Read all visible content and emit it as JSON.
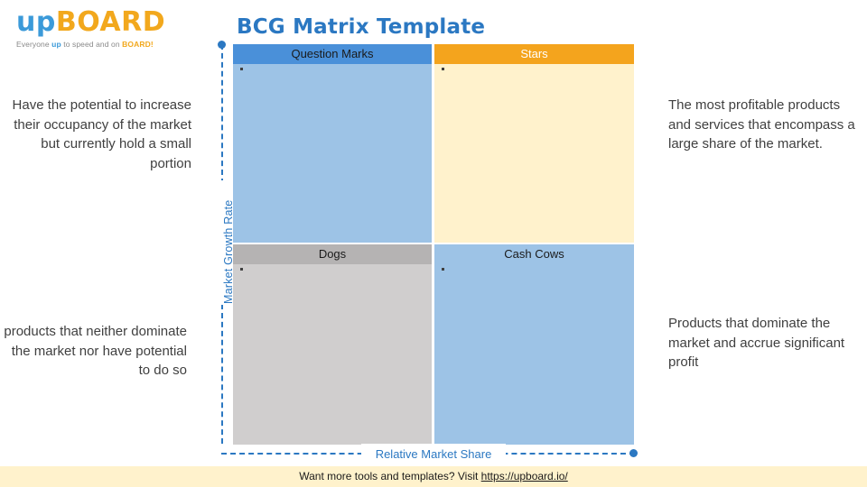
{
  "logo": {
    "brand_up": "up",
    "brand_board": "BOARD",
    "tagline_before": "Everyone ",
    "tagline_up": "up",
    "tagline_middle": " to speed and on ",
    "tagline_board": "BOARD!",
    "colors": {
      "up": "#3b9ad9",
      "board": "#f2a81d"
    }
  },
  "title": "BCG Matrix Template",
  "axes": {
    "vertical_label": "Market Growth Rate",
    "horizontal_label": "Relative Market Share",
    "color": "#2b78c2"
  },
  "quadrants": {
    "question_marks": {
      "label": "Question Marks",
      "bullet": "▪",
      "color": "#9dc3e6",
      "header_color": "#4a90d9"
    },
    "stars": {
      "label": "Stars",
      "bullet": "▪",
      "color": "#fff2cc",
      "header_color": "#f4a41d"
    },
    "dogs": {
      "label": "Dogs",
      "bullet": "▪",
      "color": "#d0cece",
      "header_color": "#b5b3b3"
    },
    "cash_cows": {
      "label": "Cash Cows",
      "bullet": "▪",
      "color": "#9dc3e6",
      "header_color": "#9dc3e6"
    }
  },
  "descriptions": {
    "question_marks": "Have the potential to increase their occupancy of the market but currently hold a small portion",
    "stars": "The most profitable products and services that encompass a large share of the market.",
    "dogs": "products that neither dominate the market nor have potential to do so",
    "cash_cows": "Products that dominate the market and accrue significant profit"
  },
  "footer": {
    "text": "Want more tools and templates? Visit ",
    "link_text": "https://upboard.io/",
    "background": "#fff2cc"
  }
}
